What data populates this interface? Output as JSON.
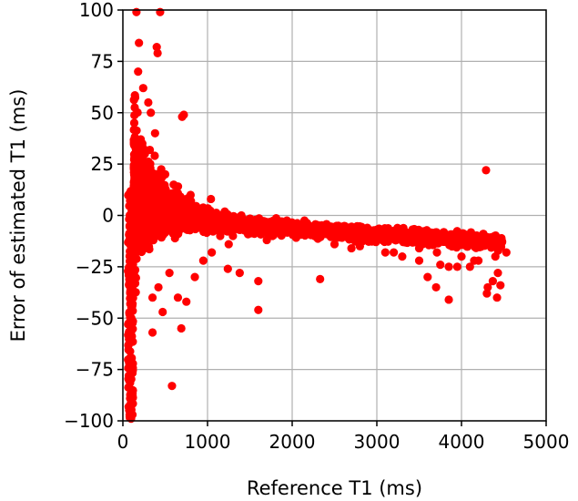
{
  "chart_data": {
    "type": "scatter",
    "title": "",
    "xlabel": "Reference T1 (ms)",
    "ylabel": "Error of estimated T1 (ms)",
    "xlim": [
      0,
      5000
    ],
    "ylim": [
      -100,
      100
    ],
    "xticks": [
      0,
      1000,
      2000,
      3000,
      4000,
      5000
    ],
    "yticks": [
      -100,
      -75,
      -50,
      -25,
      0,
      25,
      50,
      75,
      100
    ],
    "xtick_labels": [
      "0",
      "1000",
      "2000",
      "3000",
      "4000",
      "5000"
    ],
    "ytick_labels": [
      "−100",
      "−75",
      "−50",
      "−25",
      "0",
      "25",
      "50",
      "75",
      "100"
    ],
    "grid": true,
    "marker_color": "#ff0000",
    "series": [
      {
        "x": [
          160,
          440,
          190,
          400,
          410,
          180,
          240,
          300,
          330,
          720,
          700,
          1040,
          1600,
          580,
          4290,
          2330,
          350,
          690,
          4530,
          4430,
          4300,
          4370,
          3850,
          3700,
          3600,
          4000,
          3900,
          4100,
          4200,
          3400,
          3200,
          3000,
          2800,
          2600,
          2400,
          2200,
          2000,
          1800,
          1400,
          1200,
          900,
          800,
          600,
          500,
          1300,
          1700,
          1900,
          2100,
          2500,
          2700,
          2900,
          3100,
          3300,
          3500,
          3750,
          3950,
          4150,
          4400,
          1100,
          1500,
          350,
          420,
          470,
          380,
          260,
          210,
          230,
          280,
          310,
          360,
          550,
          650,
          750,
          850,
          950,
          1050,
          1150,
          1250,
          80,
          90,
          95,
          100,
          85,
          75,
          70,
          105,
          90,
          80,
          1240,
          1380,
          1600,
          3850,
          4310,
          4420,
          4460,
          3710,
          3500
        ],
        "y": [
          99,
          99,
          84,
          82,
          79,
          70,
          62,
          55,
          50,
          49,
          48,
          8,
          -46,
          -83,
          22,
          -31,
          -57,
          -55,
          -18,
          -28,
          -38,
          -32,
          -41,
          -35,
          -30,
          -20,
          -15,
          -25,
          -22,
          -12,
          -18,
          -8,
          -15,
          -10,
          -8,
          -5,
          -6,
          -5,
          0,
          -4,
          -2,
          10,
          15,
          20,
          -10,
          -12,
          -8,
          -6,
          -14,
          -16,
          -12,
          -18,
          -20,
          -16,
          -24,
          -25,
          -22,
          -20,
          -6,
          -3,
          -40,
          -35,
          -47,
          40,
          30,
          20,
          35,
          25,
          10,
          5,
          -28,
          -40,
          -42,
          -30,
          -22,
          -18,
          -10,
          -14,
          -5,
          -20,
          -35,
          -50,
          -60,
          -72,
          -78,
          -85,
          -92,
          -98,
          -26,
          -28,
          -32,
          -25,
          -35,
          -40,
          -34,
          -18,
          -22
        ]
      }
    ]
  }
}
